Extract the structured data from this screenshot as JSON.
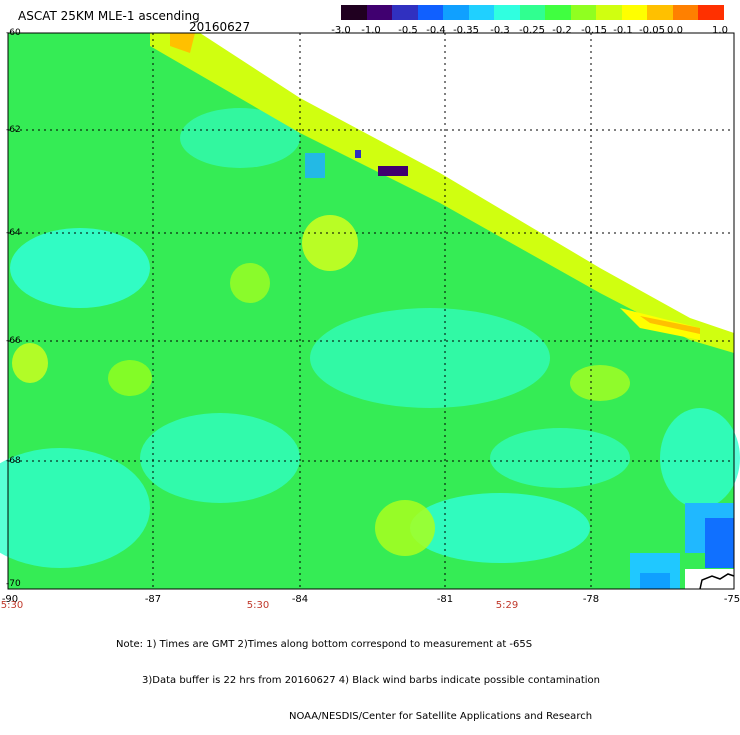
{
  "header": {
    "title": "ASCAT 25KM MLE-1 ascending",
    "date": "20160627"
  },
  "colorbar": {
    "colors": [
      "#200020",
      "#400070",
      "#3030c0",
      "#1060ff",
      "#10a0ff",
      "#20d0ff",
      "#30ffe0",
      "#30ff90",
      "#40ff40",
      "#90ff20",
      "#d0ff10",
      "#ffff00",
      "#ffc000",
      "#ff8000",
      "#ff3000"
    ],
    "labels": [
      "-3.0",
      "-1.0",
      "-0.5",
      "-0.4",
      "-0.35",
      "-0.3",
      "-0.25",
      "-0.2",
      "-0.15",
      "-0.1",
      "-0.05",
      "0.0",
      "1.0"
    ]
  },
  "axes": {
    "lat_labels": [
      "-60",
      "-62",
      "-64",
      "-66",
      "-68",
      "-70"
    ],
    "lon_labels": [
      "-90",
      "-87",
      "-84",
      "-81",
      "-78",
      "-75"
    ],
    "time_labels": [
      "5:30",
      "5:30",
      "5:29"
    ]
  },
  "notes": [
    "Note: 1) Times are GMT 2)Times along bottom correspond to measurement at -65S",
    "3)Data buffer is 22 hrs from 20160627 4) Black wind barbs indicate possible contamination",
    "NOAA/NESDIS/Center for Satellite Applications and Research"
  ],
  "map": {
    "background_field": "#30ee60",
    "swath_edge_colors": [
      "#d0ff10",
      "#ffff00",
      "#ffc000"
    ],
    "cyan_region": "#30ffe0",
    "blue_region": "#1060ff",
    "grid_color": "#000000"
  }
}
